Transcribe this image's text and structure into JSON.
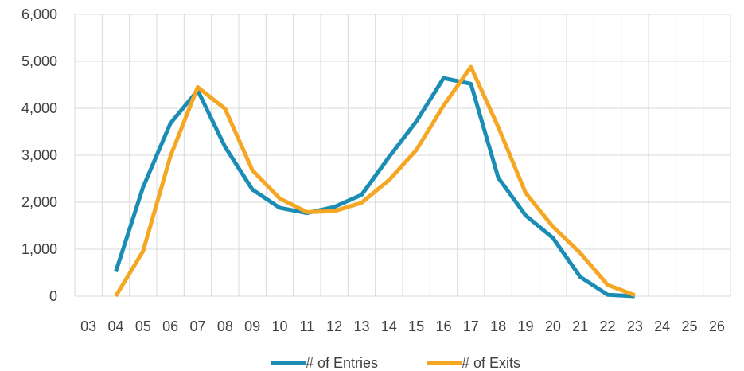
{
  "chart_data": {
    "type": "line",
    "categories": [
      "03",
      "04",
      "05",
      "06",
      "07",
      "08",
      "09",
      "10",
      "11",
      "12",
      "13",
      "14",
      "15",
      "16",
      "17",
      "18",
      "19",
      "20",
      "21",
      "22",
      "23",
      "24",
      "25",
      "26"
    ],
    "series": [
      {
        "name": "# of Entries",
        "color": "#1B8DB5",
        "values": [
          null,
          520,
          2320,
          3680,
          4380,
          3180,
          2270,
          1880,
          1770,
          1900,
          2160,
          2960,
          3720,
          4640,
          4520,
          2520,
          1720,
          1240,
          410,
          30,
          0,
          null,
          null,
          null
        ]
      },
      {
        "name": "# of Exits",
        "color": "#F5A623",
        "values": [
          null,
          0,
          960,
          2980,
          4450,
          3990,
          2680,
          2080,
          1790,
          1810,
          1990,
          2470,
          3110,
          4060,
          4880,
          3600,
          2200,
          1480,
          920,
          240,
          20,
          null,
          null,
          null
        ]
      }
    ],
    "yticks": [
      "0",
      "1,000",
      "2,000",
      "3,000",
      "4,000",
      "5,000",
      "6,000"
    ],
    "ylim": [
      0,
      6000
    ],
    "title": "",
    "xlabel": "",
    "ylabel": "",
    "grid": true,
    "legend_position": "bottom"
  }
}
